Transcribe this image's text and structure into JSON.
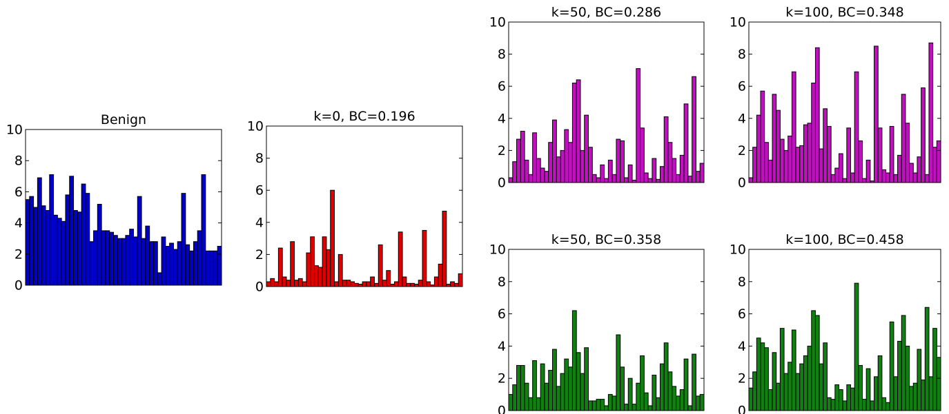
{
  "chart_data": [
    {
      "type": "bar",
      "title": "Benign",
      "color": "#0000cc",
      "ylim": [
        0,
        10
      ],
      "yticks": [
        "0",
        "2",
        "4",
        "6",
        "8",
        "10"
      ],
      "xticks": "none",
      "values": [
        5.5,
        5.7,
        5.0,
        6.9,
        5.1,
        4.8,
        7.1,
        4.5,
        4.3,
        4.1,
        5.8,
        7.0,
        4.8,
        4.7,
        6.5,
        5.9,
        2.8,
        3.5,
        5.2,
        3.5,
        3.5,
        3.4,
        3.2,
        3.0,
        3.0,
        3.2,
        3.6,
        3.1,
        5.7,
        3.0,
        3.8,
        2.8,
        2.8,
        0.8,
        3.1,
        2.5,
        2.7,
        2.3,
        2.8,
        5.9,
        2.6,
        2.2,
        2.8,
        3.5,
        7.1,
        2.2,
        2.2,
        2.2,
        2.5
      ]
    },
    {
      "type": "bar",
      "title": "k=0, BC=0.196",
      "color": "#e00000",
      "ylim": [
        0,
        10
      ],
      "yticks": [
        "0",
        "2",
        "4",
        "6",
        "8",
        "10"
      ],
      "xticks": "none",
      "values": [
        0.3,
        0.5,
        0.3,
        2.4,
        0.6,
        0.4,
        2.8,
        0.4,
        0.5,
        0.3,
        2.1,
        3.1,
        1.3,
        1.2,
        3.1,
        2.3,
        6.0,
        0.3,
        2.0,
        0.4,
        0.4,
        0.3,
        0.2,
        0.15,
        0.3,
        0.3,
        0.6,
        0.2,
        2.6,
        0.4,
        1.0,
        0.15,
        0.3,
        3.4,
        0.6,
        0.2,
        0.2,
        0.15,
        0.4,
        3.5,
        0.3,
        0.1,
        0.6,
        1.4,
        4.7,
        0.15,
        0.3,
        0.2,
        0.8
      ]
    },
    {
      "type": "bar",
      "title": "k=50, BC=0.286",
      "color": "#c010c0",
      "ylim": [
        0,
        10
      ],
      "yticks": [
        "0",
        "2",
        "4",
        "6",
        "8",
        "10"
      ],
      "xticks": "none",
      "values": [
        0.3,
        1.3,
        2.7,
        3.2,
        1.4,
        0.5,
        3.1,
        1.5,
        0.9,
        0.7,
        2.5,
        3.9,
        1.6,
        2.0,
        3.3,
        2.5,
        6.2,
        6.4,
        2.0,
        4.2,
        2.2,
        0.5,
        0.3,
        1.1,
        0.25,
        1.4,
        0.5,
        2.7,
        2.6,
        0.3,
        1.1,
        0.15,
        7.1,
        3.4,
        0.6,
        0.25,
        1.5,
        0.2,
        1.0,
        4.1,
        2.5,
        1.5,
        0.5,
        1.7,
        4.9,
        0.4,
        6.6,
        0.7,
        1.2
      ]
    },
    {
      "type": "bar",
      "title": "k=100, BC=0.348",
      "color": "#c010c0",
      "ylim": [
        0,
        10
      ],
      "yticks": [
        "0",
        "2",
        "4",
        "6",
        "8",
        "10"
      ],
      "xticks": "none",
      "values": [
        0.3,
        2.2,
        4.2,
        5.7,
        2.5,
        1.4,
        5.5,
        4.5,
        2.7,
        2.0,
        2.9,
        6.9,
        2.2,
        2.3,
        3.6,
        3.7,
        6.2,
        8.4,
        2.1,
        4.6,
        3.5,
        0.5,
        0.9,
        1.8,
        0.25,
        3.4,
        0.6,
        6.9,
        2.6,
        0.25,
        1.4,
        0.1,
        8.5,
        3.4,
        0.8,
        0.6,
        3.5,
        0.5,
        1.7,
        5.5,
        3.7,
        1.2,
        0.6,
        1.6,
        5.9,
        0.5,
        8.7,
        2.2,
        2.6
      ]
    },
    {
      "type": "bar",
      "title": "k=50, BC=0.358",
      "color": "#108010",
      "ylim": [
        0,
        10
      ],
      "yticks": [
        "0",
        "2",
        "4",
        "6",
        "8",
        "10"
      ],
      "xticks": "none",
      "values": [
        1.0,
        1.6,
        2.8,
        2.8,
        1.7,
        0.8,
        3.1,
        0.8,
        2.9,
        1.7,
        2.5,
        3.8,
        1.5,
        2.3,
        3.2,
        2.7,
        6.2,
        3.6,
        2.3,
        3.9,
        0.6,
        0.6,
        0.7,
        0.7,
        0.3,
        1.0,
        0.9,
        4.7,
        2.7,
        0.4,
        2.0,
        0.4,
        1.7,
        3.4,
        1.1,
        0.3,
        2.2,
        0.8,
        2.9,
        4.2,
        2.4,
        1.5,
        0.9,
        1.3,
        3.2,
        0.3,
        3.5,
        0.9,
        1.0
      ]
    },
    {
      "type": "bar",
      "title": "k=100, BC=0.458",
      "color": "#108010",
      "ylim": [
        0,
        10
      ],
      "yticks": [
        "0",
        "2",
        "4",
        "6",
        "8",
        "10"
      ],
      "xticks": "none",
      "values": [
        1.4,
        2.4,
        4.5,
        4.2,
        3.9,
        1.3,
        3.6,
        1.7,
        5.1,
        2.3,
        3.0,
        5.0,
        2.3,
        2.9,
        3.4,
        4.0,
        6.2,
        5.9,
        2.9,
        4.2,
        0.8,
        0.7,
        1.6,
        1.3,
        0.6,
        1.6,
        1.4,
        7.9,
        2.8,
        0.7,
        2.6,
        0.6,
        2.1,
        3.4,
        0.8,
        0.5,
        5.5,
        2.1,
        4.3,
        5.9,
        4.0,
        1.5,
        1.7,
        3.8,
        1.9,
        6.4,
        2.1,
        5.1,
        3.3
      ]
    }
  ]
}
